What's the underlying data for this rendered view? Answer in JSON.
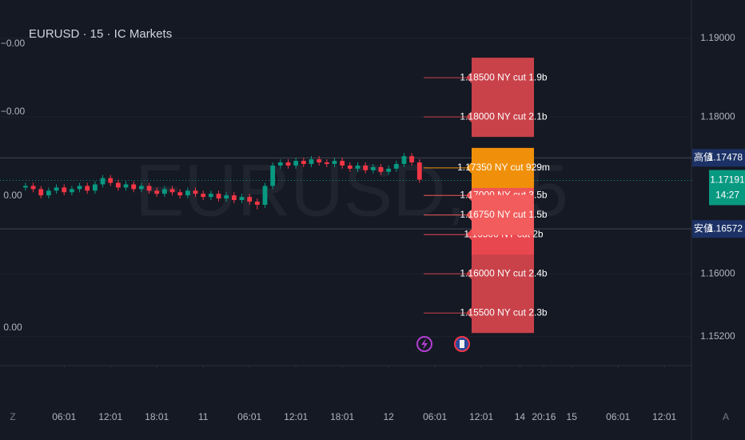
{
  "chart_data": {
    "type": "candlestick",
    "title": "EURUSD · 15 · IC Markets",
    "watermark": "EURUSD, 15",
    "up_color": "#089981",
    "down_color": "#f23645",
    "x": [
      -5,
      -4,
      -3,
      -2,
      -1,
      0,
      1,
      2,
      3,
      4,
      5,
      6,
      7,
      8,
      9,
      10,
      11,
      12,
      13,
      14,
      15,
      16,
      17,
      18,
      19,
      20,
      21,
      22,
      23,
      24,
      25,
      26,
      27,
      28,
      29,
      30,
      31,
      32,
      33,
      34,
      35,
      36,
      37,
      38,
      39,
      40,
      41,
      42,
      43,
      44,
      45,
      46
    ],
    "open": [
      1.171,
      1.1712,
      1.1708,
      1.17,
      1.1706,
      1.171,
      1.1704,
      1.1708,
      1.1712,
      1.1706,
      1.1714,
      1.1722,
      1.1716,
      1.171,
      1.1714,
      1.1708,
      1.1712,
      1.1706,
      1.1702,
      1.1708,
      1.1704,
      1.17,
      1.1706,
      1.1702,
      1.1698,
      1.1702,
      1.1696,
      1.17,
      1.1694,
      1.1698,
      1.1692,
      1.1688,
      1.1712,
      1.1738,
      1.1742,
      1.1738,
      1.1744,
      1.174,
      1.1746,
      1.1742,
      1.174,
      1.1744,
      1.1738,
      1.1734,
      1.1738,
      1.1732,
      1.1736,
      1.173,
      1.1734,
      1.174,
      1.175,
      1.1742
    ],
    "high": [
      1.1716,
      1.1716,
      1.1712,
      1.171,
      1.1714,
      1.1714,
      1.1712,
      1.1716,
      1.1716,
      1.1718,
      1.1726,
      1.1726,
      1.172,
      1.1718,
      1.1718,
      1.1716,
      1.1716,
      1.171,
      1.1712,
      1.1712,
      1.1708,
      1.171,
      1.171,
      1.1706,
      1.1706,
      1.1706,
      1.1704,
      1.1704,
      1.1702,
      1.1702,
      1.1696,
      1.1716,
      1.1742,
      1.1746,
      1.1746,
      1.1748,
      1.1748,
      1.175,
      1.175,
      1.1746,
      1.1748,
      1.1748,
      1.1742,
      1.1742,
      1.1742,
      1.174,
      1.174,
      1.1738,
      1.1744,
      1.1754,
      1.1754,
      1.1746
    ],
    "low": [
      1.1706,
      1.1704,
      1.1696,
      1.1696,
      1.1702,
      1.17,
      1.17,
      1.1704,
      1.1702,
      1.1702,
      1.171,
      1.1712,
      1.1706,
      1.1706,
      1.1704,
      1.1704,
      1.1702,
      1.1698,
      1.1698,
      1.17,
      1.1696,
      1.1696,
      1.1698,
      1.1694,
      1.1694,
      1.1692,
      1.1692,
      1.169,
      1.169,
      1.1688,
      1.1682,
      1.1684,
      1.1708,
      1.1734,
      1.1734,
      1.1734,
      1.1736,
      1.1736,
      1.1738,
      1.1736,
      1.1736,
      1.1734,
      1.173,
      1.173,
      1.1728,
      1.1728,
      1.1726,
      1.1726,
      1.173,
      1.1736,
      1.1738,
      1.1716
    ],
    "close": [
      1.1712,
      1.1708,
      1.17,
      1.1706,
      1.171,
      1.1704,
      1.1708,
      1.1712,
      1.1706,
      1.1714,
      1.1722,
      1.1716,
      1.171,
      1.1714,
      1.1708,
      1.1712,
      1.1706,
      1.1702,
      1.1708,
      1.1704,
      1.17,
      1.1706,
      1.1702,
      1.1698,
      1.1702,
      1.1696,
      1.17,
      1.1694,
      1.1698,
      1.1692,
      1.1688,
      1.1712,
      1.1738,
      1.1742,
      1.1738,
      1.1744,
      1.174,
      1.1746,
      1.1742,
      1.174,
      1.1744,
      1.1738,
      1.1734,
      1.1738,
      1.1732,
      1.1736,
      1.173,
      1.1734,
      1.174,
      1.175,
      1.1742,
      1.172
    ],
    "xlim": [
      -8.3,
      81.2
    ],
    "xticks": [
      {
        "value": 0,
        "label": "06:01"
      },
      {
        "value": 6,
        "label": "12:01"
      },
      {
        "value": 12,
        "label": "18:01"
      },
      {
        "value": 18,
        "label": "11"
      },
      {
        "value": 24,
        "label": "06:01"
      },
      {
        "value": 30,
        "label": "12:01"
      },
      {
        "value": 36,
        "label": "18:01"
      },
      {
        "value": 42,
        "label": "12"
      },
      {
        "value": 48,
        "label": "06:01"
      },
      {
        "value": 54,
        "label": "12:01"
      },
      {
        "value": 59,
        "label": "14"
      },
      {
        "value": 62.1,
        "label": "20:16"
      },
      {
        "value": 65.7,
        "label": "15"
      },
      {
        "value": 71.7,
        "label": "06:01"
      },
      {
        "value": 77.7,
        "label": "12:01"
      }
    ],
    "ylim": [
      1.1483,
      1.1949
    ],
    "yticks": [
      {
        "value": 1.19,
        "label": "1.19000"
      },
      {
        "value": 1.18,
        "label": "1.18000"
      },
      {
        "value": 1.16,
        "label": "1.16000"
      },
      {
        "value": 1.152,
        "label": "1.15200"
      }
    ],
    "left_axis_labels": [
      "−0.00",
      "−0.00",
      "0.00",
      "0.00"
    ],
    "price_lines": [
      {
        "value": 1.17478,
        "tag": "高値",
        "color": "#1c3266"
      },
      {
        "value": 1.16572,
        "tag": "安値",
        "color": "#1c3266"
      }
    ],
    "current_price": {
      "value": 1.17191,
      "countdown": "14:27",
      "color": "#089981"
    },
    "annotations": [
      {
        "value": 1.185,
        "label": "1.18500 NY cut 1.9b",
        "color": "#c9424a"
      },
      {
        "value": 1.18,
        "label": "1.18000 NY cut 2.1b",
        "color": "#c9424a"
      },
      {
        "value": 1.16,
        "label": "1.16000 NY cut 2.4b",
        "color": "#c9424a"
      },
      {
        "value": 1.155,
        "label": "1.15500 NY cut 2.3b",
        "color": "#c9424a"
      },
      {
        "value": 1.165,
        "label": "1.16500 NY cut 2b",
        "color": "#e9474f"
      },
      {
        "value": 1.17,
        "label": "1.17000 NY cut 3.5b",
        "color": "#ee5656"
      },
      {
        "value": 1.1675,
        "label": "1.16750 NY cut 1.5b",
        "color": "#f25c5c"
      },
      {
        "value": 1.1735,
        "label": "1.17350 NY cut 929m",
        "color": "#f0900a"
      }
    ]
  }
}
